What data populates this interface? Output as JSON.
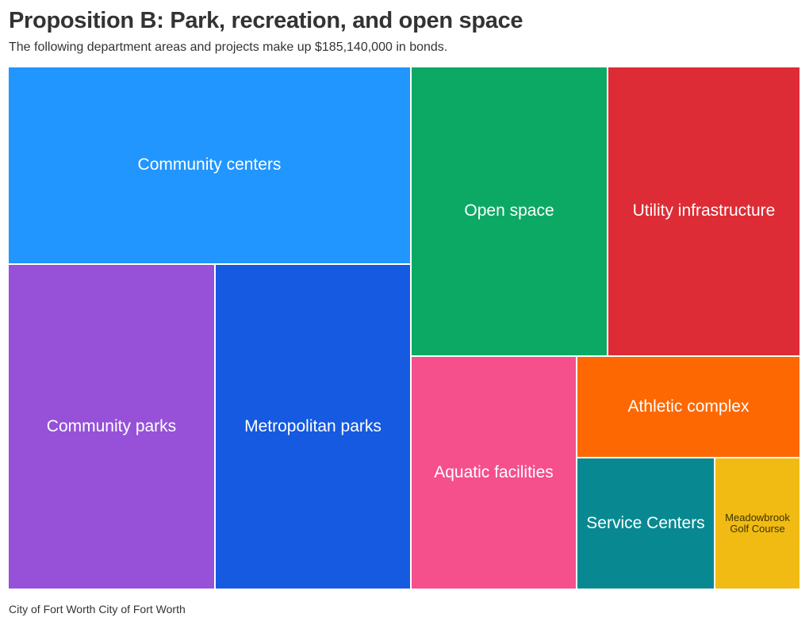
{
  "header": {
    "title": "Proposition B: Park, recreation, and open space",
    "subtitle": "The following department areas and projects make up $185,140,000 in bonds."
  },
  "footer": {
    "source": "City of Fort Worth City of Fort Worth"
  },
  "chart_data": {
    "type": "treemap",
    "total": 185140000,
    "items": [
      {
        "label": "Community centers",
        "color": "#2196ff"
      },
      {
        "label": "Community parks",
        "color": "#9651d8"
      },
      {
        "label": "Metropolitan parks",
        "color": "#155ae0"
      },
      {
        "label": "Open space",
        "color": "#0ca965"
      },
      {
        "label": "Utility infrastructure",
        "color": "#dd2c35"
      },
      {
        "label": "Aquatic facilities",
        "color": "#f54f8c"
      },
      {
        "label": "Athletic complex",
        "color": "#fd6802"
      },
      {
        "label": "Service Centers",
        "color": "#088992"
      },
      {
        "label": "Meadowbrook Golf Course",
        "color": "#f2bb13"
      }
    ]
  }
}
